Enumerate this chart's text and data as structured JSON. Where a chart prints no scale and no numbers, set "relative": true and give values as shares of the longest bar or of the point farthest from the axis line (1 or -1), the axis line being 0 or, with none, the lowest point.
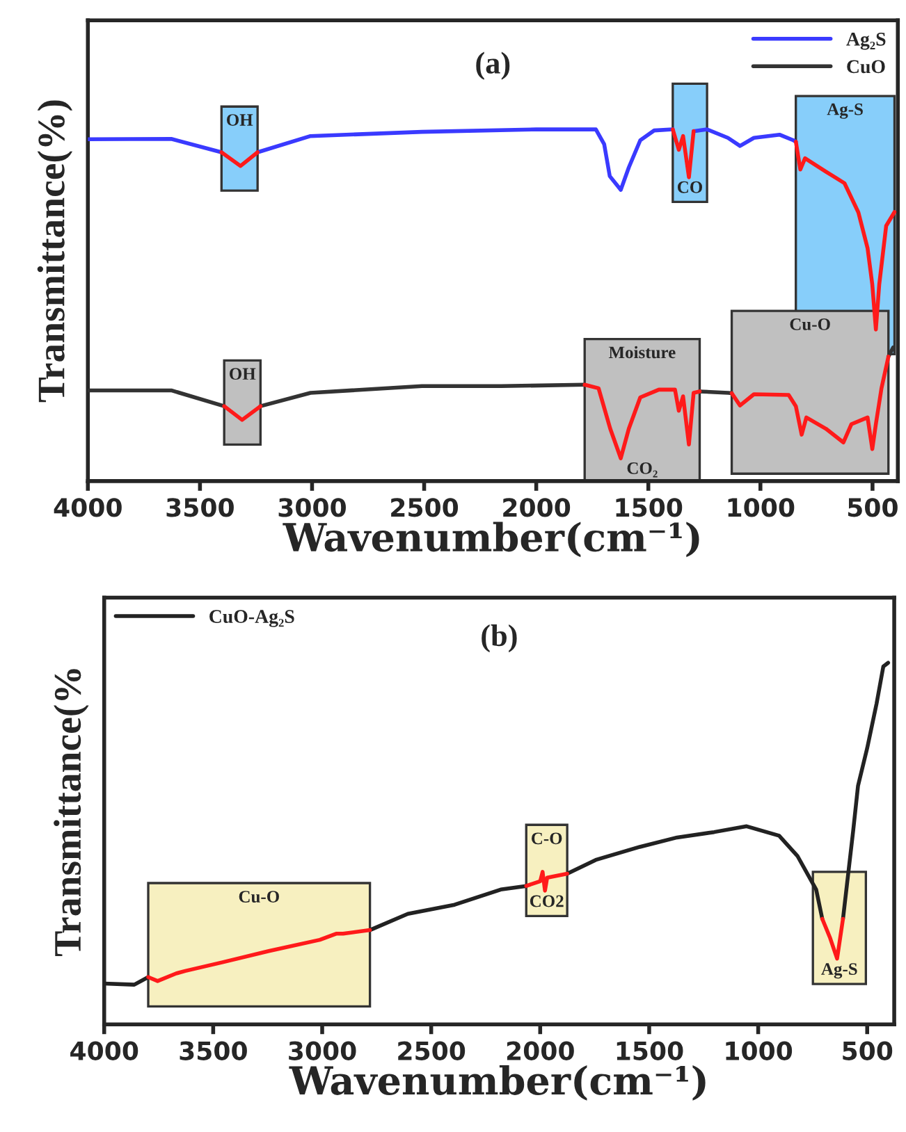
{
  "chart_data": [
    {
      "type": "line",
      "title": "(a)",
      "xlabel": "Wavenumber(cm⁻¹)",
      "ylabel": "Transmittance(%)",
      "relative": true,
      "xlim": [
        4000,
        387
      ],
      "xticks": [
        4000,
        3500,
        3000,
        2500,
        2000,
        1500,
        1000,
        500
      ],
      "tick_labels": "x",
      "grid": false,
      "legend": "top right",
      "series": [
        {
          "name": "Ag₂S",
          "color": "#3a3aff",
          "x": [
            4000,
            3628,
            3404,
            3319,
            3243,
            3007,
            2510,
            2001,
            1734,
            1697,
            1672,
            1623,
            1587,
            1536,
            1474,
            1391,
            1345,
            1298,
            1238,
            1145,
            1091,
            1029,
            915,
            853,
            842
          ],
          "values": [
            0.972,
            0.973,
            0.935,
            null,
            0.935,
            0.981,
            0.993,
            1.0,
            1.0,
            0.958,
            0.867,
            0.828,
            0.892,
            0.969,
            0.997,
            1.0,
            null,
            0.995,
            1.0,
            0.976,
            0.953,
            0.976,
            0.985,
            0.969,
            0.965
          ]
        },
        {
          "name": "CuO",
          "color": "#333333",
          "x": [
            4000,
            3628,
            3392,
            3300,
            3230,
            3007,
            2510,
            2157,
            1784,
            1500,
            1271,
            1143,
            1128,
            800,
            429,
            408
          ],
          "values": [
            0.258,
            0.258,
            0.213,
            null,
            0.213,
            0.251,
            0.27,
            0.27,
            0.274,
            null,
            0.255,
            0.251,
            0.25,
            null,
            0.354,
            0.38
          ]
        },
        {
          "color": "#ff1a1a",
          "x": [
            1391,
            1364,
            1345,
            1319,
            1298
          ],
          "values": [
            1.0,
            0.942,
            0.981,
            0.864,
            0.995
          ]
        },
        {
          "color": "#ff1a1a",
          "x": [
            1784,
            1722,
            1670,
            1623,
            1587,
            1536,
            1453,
            1381,
            1364,
            1345,
            1319,
            1298,
            1271
          ],
          "values": [
            0.274,
            0.264,
            0.149,
            0.065,
            0.149,
            0.238,
            0.26,
            0.26,
            0.2,
            0.241,
            0.104,
            0.251,
            0.255
          ]
        },
        {
          "color": "#ff1a1a",
          "x": [
            3404,
            3319,
            3243
          ],
          "values": [
            0.935,
            0.896,
            0.935
          ]
        },
        {
          "color": "#ff1a1a",
          "x": [
            842,
            822,
            801,
            708,
            625,
            563,
            522,
            501,
            485,
            470,
            439,
            402
          ],
          "values": [
            0.965,
            0.886,
            0.918,
            0.88,
            0.847,
            0.764,
            0.662,
            0.559,
            0.431,
            0.559,
            0.726,
            0.765
          ]
        },
        {
          "color": "#ff1a1a",
          "x": [
            3392,
            3312,
            3230
          ],
          "values": [
            0.213,
            0.174,
            0.213
          ]
        },
        {
          "color": "#ff1a1a",
          "x": [
            1128,
            1091,
            1029,
            874,
            842,
            816,
            795,
            708,
            630,
            594,
            522,
            501,
            485,
            460,
            429
          ],
          "values": [
            0.25,
            0.215,
            0.247,
            0.245,
            0.213,
            0.132,
            0.181,
            0.149,
            0.11,
            0.162,
            0.181,
            0.091,
            0.162,
            0.264,
            0.354
          ]
        }
      ],
      "bands": [
        {
          "axis": "x",
          "from": 1391,
          "to": 1238,
          "label": null,
          "color": "#87cefa"
        },
        {
          "axis": "x",
          "from": 1784,
          "to": 1271,
          "label": "Moisture",
          "color": "#c0c0c0"
        },
        {
          "axis": "x",
          "from": 3404,
          "to": 3243,
          "label": "OH",
          "color": "#87cefa"
        },
        {
          "axis": "x",
          "from": 842,
          "to": 402,
          "label": "Ag-S",
          "color": "#87cefa"
        },
        {
          "axis": "x",
          "from": 3392,
          "to": 3230,
          "label": "OH",
          "color": "#c0c0c0"
        },
        {
          "axis": "x",
          "from": 1128,
          "to": 429,
          "label": "Cu-O",
          "color": "#c0c0c0"
        }
      ],
      "annotations": [
        "CO",
        "CO₂"
      ]
    },
    {
      "type": "line",
      "title": "(b)",
      "xlabel": "Wavenumber(cm⁻¹)",
      "ylabel": "Transmittance(%",
      "relative": true,
      "xlim": [
        4000,
        376
      ],
      "xticks": [
        4000,
        3500,
        3000,
        2500,
        2000,
        1500,
        1000,
        500
      ],
      "tick_labels": "x",
      "grid": false,
      "legend": "top left",
      "series": [
        {
          "name": "CuO-Ag₂S",
          "color": "#222222",
          "x": [
            4000,
            3862,
            3798,
            3300,
            2781,
            2607,
            2393,
            2181,
            2064,
            1970,
            1876,
            1745,
            1543,
            1372,
            1202,
            1053,
            904,
            819,
            734,
            706,
            650,
            611,
            564,
            542,
            500,
            457,
            426,
            404
          ],
          "values": [
            0.113,
            0.11,
            0.131,
            null,
            0.261,
            0.306,
            0.331,
            0.373,
            0.383,
            null,
            0.417,
            0.455,
            0.491,
            0.517,
            0.532,
            0.548,
            0.522,
            0.465,
            0.373,
            0.292,
            null,
            0.292,
            0.537,
            0.66,
            0.764,
            0.887,
            0.99,
            1.0
          ]
        },
        {
          "color": "#ff1a1a",
          "x": [
            2064,
            2000,
            1989,
            1978,
            1968,
            1876
          ],
          "values": [
            0.383,
            0.396,
            0.422,
            0.37,
            0.406,
            0.417
          ]
        },
        {
          "color": "#ff1a1a",
          "x": [
            706,
            670,
            638,
            611
          ],
          "values": [
            0.292,
            0.239,
            0.182,
            0.292
          ]
        },
        {
          "color": "#ff1a1a",
          "x": [
            3798,
            3755,
            3670,
            3628,
            3457,
            3245,
            3011,
            2936,
            2904,
            2781
          ],
          "values": [
            0.131,
            0.12,
            0.141,
            0.148,
            0.172,
            0.203,
            0.234,
            0.251,
            0.251,
            0.261
          ]
        }
      ],
      "bands": [
        {
          "axis": "x",
          "from": 2064,
          "to": 1876,
          "label": "C-O",
          "color": "#f7f0c0"
        },
        {
          "axis": "x",
          "from": 749,
          "to": 506,
          "label": null,
          "color": "#f7f0c0"
        },
        {
          "axis": "x",
          "from": 3798,
          "to": 2781,
          "label": "Cu-O",
          "color": "#f7f0c0"
        }
      ],
      "annotations": [
        "CO2",
        "Ag-S"
      ]
    }
  ]
}
